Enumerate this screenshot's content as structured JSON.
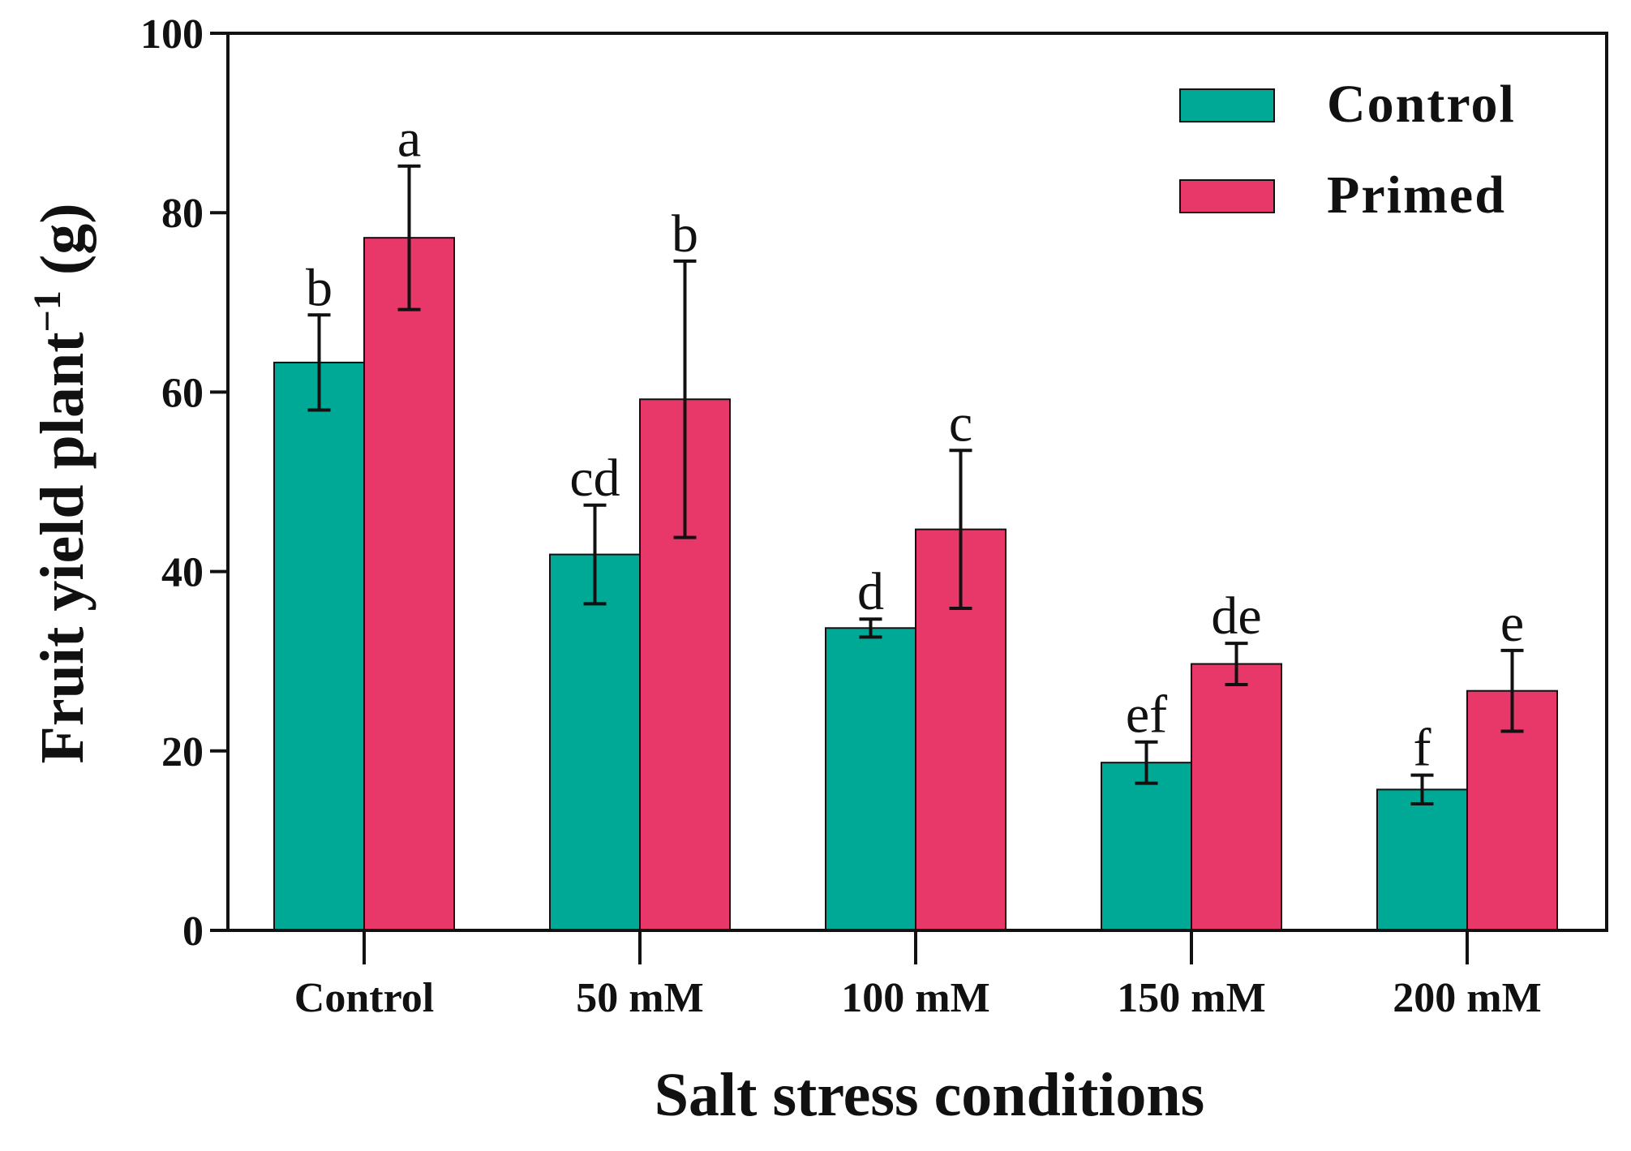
{
  "chart_data": {
    "type": "bar",
    "title": "",
    "xlabel": "Salt stress conditions",
    "ylabel": "Fruit yield plant",
    "ylabel_superscript": "−1",
    "ylabel_unit": " (g)",
    "ylim": [
      0,
      100
    ],
    "yticks": [
      "0",
      "20",
      "40",
      "60",
      "80",
      "100"
    ],
    "categories": [
      "Control",
      "50 mM",
      "100 mM",
      "150 mM",
      "200 mM"
    ],
    "legend_position": "top-right",
    "series": [
      {
        "name": "Control",
        "color": "#00A896",
        "values": [
          63.3,
          41.9,
          33.7,
          18.7,
          15.7
        ],
        "errors": [
          5.3,
          5.5,
          1.0,
          2.3,
          1.6
        ],
        "labels": [
          "b",
          "cd",
          "d",
          "ef",
          "f"
        ]
      },
      {
        "name": "Primed",
        "color": "#E8386A",
        "values": [
          77.2,
          59.2,
          44.7,
          29.7,
          26.7
        ],
        "errors": [
          8.0,
          15.4,
          8.8,
          2.3,
          4.5
        ],
        "labels": [
          "a",
          "b",
          "c",
          "de",
          "e"
        ]
      }
    ]
  }
}
